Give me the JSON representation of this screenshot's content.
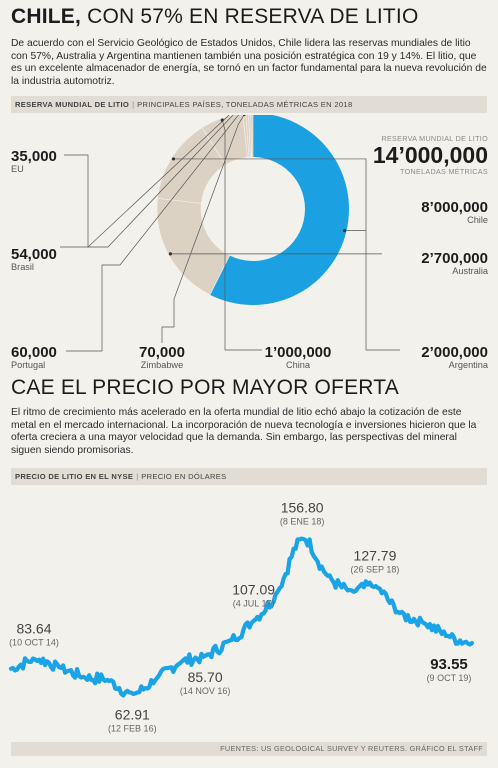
{
  "header": {
    "title_bold": "CHILE,",
    "title_light": " CON 57% EN RESERVA DE LITIO",
    "intro": "De acuerdo con el Servicio Geológico de Estados Unidos, Chile lidera las reservas mundiales de litio con 57%, Australia y Argentina mantienen también una posición estratégica con 19 y 14%. El litio, que es un excelente almacenador de energía, se tornó en un factor fundamental para la nueva revolución de la industria automotriz."
  },
  "reserves_section": {
    "title": "RESERVA MUNDIAL DE LITIO",
    "subtitle": "PRINCIPALES PAÍSES, TONELADAS MÉTRICAS EN 2018",
    "total_label": "RESERVA MUNDIAL DE LITIO",
    "total_value": "14’000,000",
    "total_unit": "TONELADAS MÉTRICAS"
  },
  "price_section": {
    "heading": "CAE EL PRECIO POR MAYOR OFERTA",
    "intro": "El ritmo de crecimiento más acelerado en la oferta mundial de litio echó abajo la cotización de este metal en el mercado internacional. La incorporación de nueva tecnología e inversiones hicieron que la oferta creciera a una mayor velocidad que la demanda. Sin embargo, las perspectivas del mineral siguen siendo promisorias.",
    "title": "PRECIO DE LITIO EN EL NYSE",
    "subtitle": "PRECIO EN DÓLARES"
  },
  "footer": {
    "source": "FUENTES: US GEOLOGICAL SURVEY Y REUTERS. GRÁFICO EL STAFF"
  },
  "colors": {
    "chile": "#1ba1e2",
    "others": "#dcd2c4",
    "line": "#1aa3e6",
    "leader": "#555555",
    "background": "#f3f1ec"
  },
  "chart_data": [
    {
      "type": "pie",
      "title": "RESERVA MUNDIAL DE LITIO",
      "unit": "toneladas métricas",
      "slices": [
        {
          "name": "Chile",
          "value": 8000000,
          "display": "8’000,000",
          "color": "#1ba1e2"
        },
        {
          "name": "Australia",
          "value": 2700000,
          "display": "2’700,000",
          "color": "#dcd2c4"
        },
        {
          "name": "Argentina",
          "value": 2000000,
          "display": "2’000,000",
          "color": "#dcd2c4"
        },
        {
          "name": "China",
          "value": 1000000,
          "display": "1’000,000",
          "color": "#dcd2c4"
        },
        {
          "name": "Zimbabwe",
          "value": 70000,
          "display": "70,000",
          "color": "#dcd2c4"
        },
        {
          "name": "Portugal",
          "value": 60000,
          "display": "60,000",
          "color": "#dcd2c4"
        },
        {
          "name": "Brasil",
          "value": 54000,
          "display": "54,000",
          "color": "#dcd2c4"
        },
        {
          "name": "EU",
          "value": 35000,
          "display": "35,000",
          "color": "#dcd2c4"
        }
      ]
    },
    {
      "type": "line",
      "title": "PRECIO DE LITIO EN EL NYSE",
      "ylabel": "PRECIO EN DÓLARES",
      "ylim": [
        50,
        165
      ],
      "x": [
        "2014-07",
        "2014-10",
        "2015-02",
        "2015-06",
        "2015-10",
        "2016-02",
        "2016-05",
        "2016-08",
        "2016-11",
        "2017-02",
        "2017-07",
        "2017-10",
        "2018-01",
        "2018-04",
        "2018-07",
        "2018-09",
        "2018-12",
        "2019-03",
        "2019-06",
        "2019-10"
      ],
      "series": [
        {
          "values": [
            78,
            83.64,
            79,
            73,
            71,
            62.91,
            72,
            82,
            85.7,
            95,
            107.09,
            125,
            156.8,
            135,
            125,
            127.79,
            112,
            106,
            98,
            93.55
          ]
        }
      ],
      "annotations": [
        {
          "value": "83.64",
          "date": "(10 OCT 14)",
          "x": "2014-10"
        },
        {
          "value": "62.91",
          "date": "(12 FEB 16)",
          "x": "2016-02"
        },
        {
          "value": "85.70",
          "date": "(14 NOV 16)",
          "x": "2016-11"
        },
        {
          "value": "107.09",
          "date": "(4 JUL 17)",
          "x": "2017-07"
        },
        {
          "value": "156.80",
          "date": "(8 ENE 18)",
          "x": "2018-01"
        },
        {
          "value": "127.79",
          "date": "(26 SEP 18)",
          "x": "2018-09"
        },
        {
          "value": "93.55",
          "date": "(9 OCT 19)",
          "x": "2019-10",
          "emphasis": true
        }
      ]
    }
  ]
}
